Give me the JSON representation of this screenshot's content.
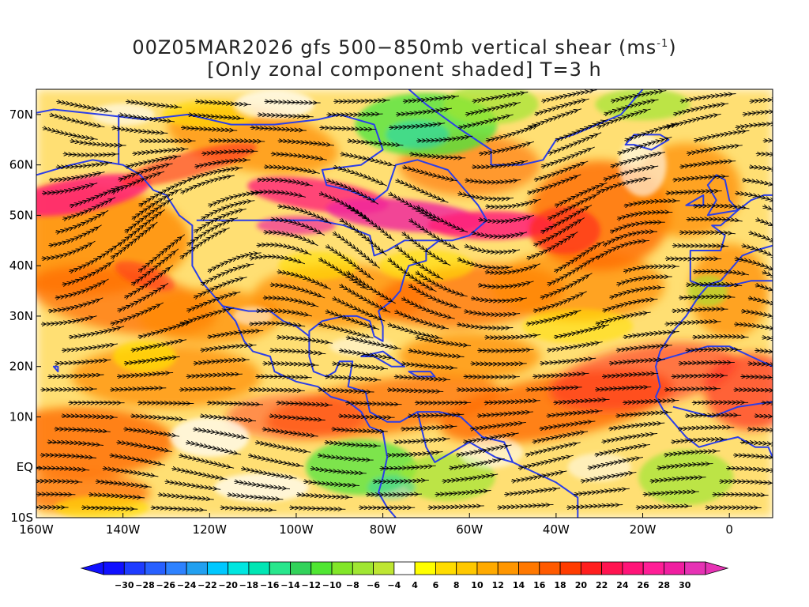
{
  "title": {
    "line1_prefix": "00Z05MAR2026 gfs 500−850mb vertical shear (ms",
    "line1_sup": "-1",
    "line1_suffix": ")",
    "line2": "[Only zonal component shaded] T=3 h"
  },
  "axes": {
    "lat_labels": [
      "70N",
      "60N",
      "50N",
      "40N",
      "30N",
      "20N",
      "10N",
      "EQ",
      "10S"
    ],
    "lon_labels": [
      "160W",
      "140W",
      "120W",
      "100W",
      "80W",
      "60W",
      "40W",
      "20W",
      "0"
    ]
  },
  "map": {
    "lon_range": [
      -160,
      10
    ],
    "lat_range": [
      -10,
      75
    ],
    "coastline_color": "#2b3ee8",
    "streamline_color": "#000000"
  },
  "colorbar": {
    "labels": [
      "-30",
      "-28",
      "-26",
      "-24",
      "-22",
      "-20",
      "-18",
      "-16",
      "-14",
      "-12",
      "-10",
      "-8",
      "-6",
      "-4",
      "4",
      "6",
      "8",
      "10",
      "12",
      "14",
      "16",
      "18",
      "20",
      "22",
      "24",
      "26",
      "28",
      "30"
    ],
    "colors": [
      "#1010ff",
      "#1e3cff",
      "#2860ff",
      "#2e82ff",
      "#22a0f0",
      "#00c8ff",
      "#00e6e0",
      "#00e6b4",
      "#28e68c",
      "#32d25a",
      "#50e632",
      "#82e628",
      "#a0e632",
      "#bee632",
      "#ffffff",
      "#ffff00",
      "#ffdc00",
      "#ffc800",
      "#ffaa00",
      "#ff9600",
      "#ff7800",
      "#ff5a00",
      "#ff3c00",
      "#ff1e1e",
      "#ff1450",
      "#ff1478",
      "#ff1e96",
      "#f01ea0",
      "#e632b4"
    ]
  }
}
